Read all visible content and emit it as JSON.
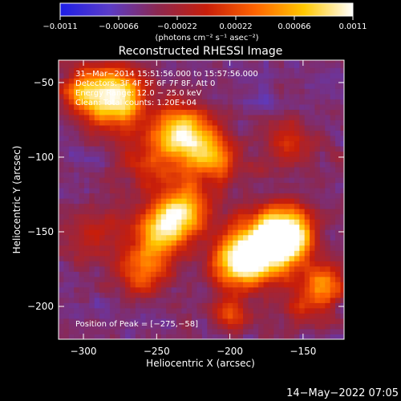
{
  "chart_data": {
    "type": "heatmap",
    "title": "Reconstructed RHESSI Image",
    "xlabel": "Heliocentric X (arcsec)",
    "ylabel": "Heliocentric Y (arcsec)",
    "xlim": [
      -317,
      -122
    ],
    "ylim": [
      -222,
      -35
    ],
    "x_ticks": [
      -300,
      -250,
      -200,
      -150
    ],
    "x_tick_labels": [
      "−300",
      "−250",
      "−200",
      "−150"
    ],
    "y_ticks": [
      -50,
      -100,
      -150,
      -200
    ],
    "y_tick_labels": [
      "−50",
      "−100",
      "−150",
      "−200"
    ],
    "colorbar": {
      "min": -0.0011,
      "max": 0.0011,
      "ticks": [
        -0.0011,
        -0.00066,
        -0.00022,
        0.00022,
        0.00066,
        0.0011
      ],
      "tick_labels": [
        "−0.0011",
        "−0.00066",
        "−0.00022",
        "0.00022",
        "0.00066",
        "0.0011"
      ],
      "unit_label": "(photons cm⁻² s⁻¹ asec⁻²)",
      "colormap": [
        "#1e1ee6",
        "#5a3cc8",
        "#8c2850",
        "#c81e0a",
        "#ff6400",
        "#ffc800",
        "#ffffff"
      ]
    },
    "annotations": [
      "31−Mar−2014 15:51:56.000 to 15:57:56.000",
      "Detectors: 3F 4F 5F 6F 7F 8F, Att 0",
      "Energy Range: 12.0 − 25.0 keV",
      "Clean: Total counts: 1.20E+04"
    ],
    "peak_label": "Position of Peak = [−275,−58]",
    "peak": [
      -275,
      -58
    ],
    "bright_sources": [
      {
        "x": -278,
        "y": -60,
        "sigma": 14,
        "amp": 1.0
      },
      {
        "x": -300,
        "y": -55,
        "sigma": 10,
        "amp": 0.55
      },
      {
        "x": -232,
        "y": -85,
        "sigma": 14,
        "amp": 0.85
      },
      {
        "x": -212,
        "y": -100,
        "sigma": 12,
        "amp": 0.6
      },
      {
        "x": -232,
        "y": -135,
        "sigma": 12,
        "amp": 0.8
      },
      {
        "x": -248,
        "y": -150,
        "sigma": 12,
        "amp": 0.75
      },
      {
        "x": -260,
        "y": -175,
        "sigma": 12,
        "amp": 0.55
      },
      {
        "x": -175,
        "y": -160,
        "sigma": 16,
        "amp": 1.0
      },
      {
        "x": -160,
        "y": -150,
        "sigma": 12,
        "amp": 0.85
      },
      {
        "x": -195,
        "y": -170,
        "sigma": 12,
        "amp": 0.75
      },
      {
        "x": -135,
        "y": -185,
        "sigma": 10,
        "amp": 0.6
      },
      {
        "x": -200,
        "y": -205,
        "sigma": 8,
        "amp": 0.45
      }
    ],
    "dim_sources": [
      {
        "x": -258,
        "y": -103,
        "sigma": 14,
        "amp": 0.5
      },
      {
        "x": -160,
        "y": -90,
        "sigma": 12,
        "amp": 0.55
      },
      {
        "x": -295,
        "y": -150,
        "sigma": 14,
        "amp": 0.45
      },
      {
        "x": -150,
        "y": -200,
        "sigma": 10,
        "amp": 0.4
      }
    ]
  },
  "footer": {
    "date": "14−May−2022 07:05"
  }
}
